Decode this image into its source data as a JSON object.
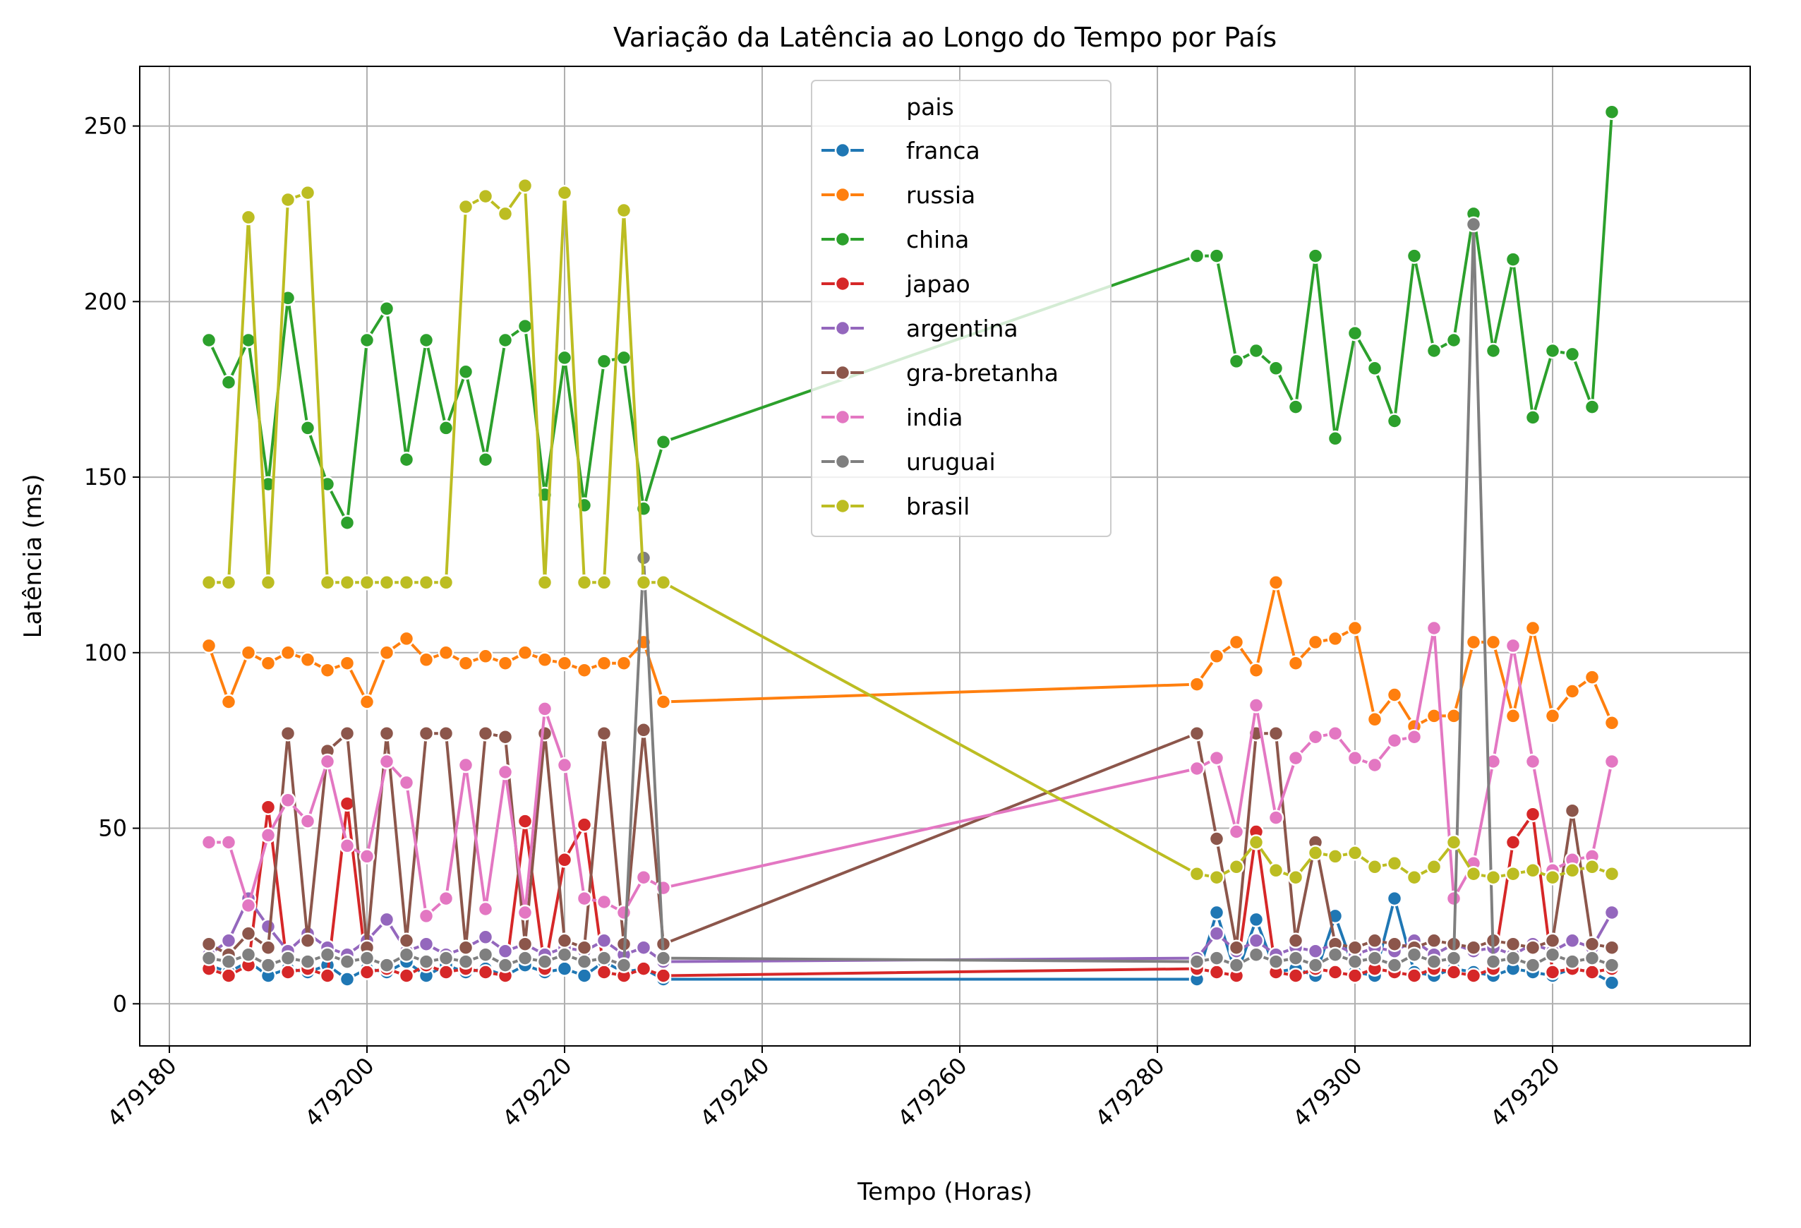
{
  "chart_data": {
    "type": "line",
    "title": "Variação da Latência ao Longo do Tempo por País",
    "xlabel": "Tempo (Horas)",
    "ylabel": "Latência (ms)",
    "xlim": [
      479177,
      479340
    ],
    "ylim": [
      -12,
      267
    ],
    "xticks": [
      479180,
      479200,
      479220,
      479240,
      479260,
      479280,
      479300,
      479320
    ],
    "xtick_labels": [
      "479180",
      "479200",
      "479220",
      "479240",
      "479260",
      "479280",
      "479300",
      "479320"
    ],
    "yticks": [
      0,
      50,
      100,
      150,
      200,
      250
    ],
    "ytick_labels": [
      "0",
      "50",
      "100",
      "150",
      "200",
      "250"
    ],
    "grid": true,
    "legend": {
      "title": "pais",
      "placement": "upper-center"
    },
    "series": [
      {
        "name": "franca",
        "color": "#1f77b4",
        "x": [
          479184,
          479186,
          479188,
          479190,
          479192,
          479194,
          479196,
          479198,
          479200,
          479202,
          479204,
          479206,
          479208,
          479210,
          479212,
          479214,
          479216,
          479218,
          479220,
          479222,
          479224,
          479226,
          479228,
          479230,
          479284,
          479286,
          479288,
          479290,
          479292,
          479294,
          479296,
          479298,
          479300,
          479302,
          479304,
          479306,
          479308,
          479310,
          479312,
          479314,
          479316,
          479318,
          479320,
          479322,
          479324,
          479326
        ],
        "y": [
          11,
          9,
          12,
          8,
          10,
          9,
          11,
          7,
          10,
          9,
          12,
          8,
          11,
          9,
          10,
          8,
          11,
          9,
          10,
          8,
          12,
          9,
          10,
          7,
          7,
          26,
          8,
          24,
          9,
          10,
          8,
          25,
          9,
          8,
          30,
          9,
          8,
          10,
          9,
          8,
          10,
          9,
          8,
          10,
          9,
          6
        ]
      },
      {
        "name": "russia",
        "color": "#ff7f0e",
        "x": [
          479184,
          479186,
          479188,
          479190,
          479192,
          479194,
          479196,
          479198,
          479200,
          479202,
          479204,
          479206,
          479208,
          479210,
          479212,
          479214,
          479216,
          479218,
          479220,
          479222,
          479224,
          479226,
          479228,
          479230,
          479284,
          479286,
          479288,
          479290,
          479292,
          479294,
          479296,
          479298,
          479300,
          479302,
          479304,
          479306,
          479308,
          479310,
          479312,
          479314,
          479316,
          479318,
          479320,
          479322,
          479324,
          479326
        ],
        "y": [
          102,
          86,
          100,
          97,
          100,
          98,
          95,
          97,
          86,
          100,
          104,
          98,
          100,
          97,
          99,
          97,
          100,
          98,
          97,
          95,
          97,
          97,
          103,
          86,
          91,
          99,
          103,
          95,
          120,
          97,
          103,
          104,
          107,
          81,
          88,
          79,
          82,
          82,
          103,
          103,
          82,
          107,
          82,
          89,
          93,
          80
        ]
      },
      {
        "name": "china",
        "color": "#2ca02c",
        "x": [
          479184,
          479186,
          479188,
          479190,
          479192,
          479194,
          479196,
          479198,
          479200,
          479202,
          479204,
          479206,
          479208,
          479210,
          479212,
          479214,
          479216,
          479218,
          479220,
          479222,
          479224,
          479226,
          479228,
          479230,
          479284,
          479286,
          479288,
          479290,
          479292,
          479294,
          479296,
          479298,
          479300,
          479302,
          479304,
          479306,
          479308,
          479310,
          479312,
          479314,
          479316,
          479318,
          479320,
          479322,
          479324,
          479326
        ],
        "y": [
          189,
          177,
          189,
          148,
          201,
          164,
          148,
          137,
          189,
          198,
          155,
          189,
          164,
          180,
          155,
          189,
          193,
          145,
          184,
          142,
          183,
          184,
          141,
          160,
          213,
          213,
          183,
          186,
          181,
          170,
          213,
          161,
          191,
          181,
          166,
          213,
          186,
          189,
          225,
          186,
          212,
          167,
          186,
          185,
          170,
          254
        ]
      },
      {
        "name": "japao",
        "color": "#d62728",
        "x": [
          479184,
          479186,
          479188,
          479190,
          479192,
          479194,
          479196,
          479198,
          479200,
          479202,
          479204,
          479206,
          479208,
          479210,
          479212,
          479214,
          479216,
          479218,
          479220,
          479222,
          479224,
          479226,
          479228,
          479230,
          479284,
          479286,
          479288,
          479290,
          479292,
          479294,
          479296,
          479298,
          479300,
          479302,
          479304,
          479306,
          479308,
          479310,
          479312,
          479314,
          479316,
          479318,
          479320,
          479322,
          479324,
          479326
        ],
        "y": [
          10,
          8,
          11,
          56,
          9,
          10,
          8,
          57,
          9,
          10,
          8,
          11,
          9,
          10,
          9,
          8,
          52,
          10,
          41,
          51,
          9,
          8,
          10,
          8,
          10,
          9,
          8,
          49,
          9,
          8,
          10,
          9,
          8,
          10,
          9,
          8,
          10,
          9,
          8,
          10,
          46,
          54,
          9,
          10,
          9,
          10
        ]
      },
      {
        "name": "argentina",
        "color": "#9467bd",
        "x": [
          479184,
          479186,
          479188,
          479190,
          479192,
          479194,
          479196,
          479198,
          479200,
          479202,
          479204,
          479206,
          479208,
          479210,
          479212,
          479214,
          479216,
          479218,
          479220,
          479222,
          479224,
          479226,
          479228,
          479230,
          479284,
          479286,
          479288,
          479290,
          479292,
          479294,
          479296,
          479298,
          479300,
          479302,
          479304,
          479306,
          479308,
          479310,
          479312,
          479314,
          479316,
          479318,
          479320,
          479322,
          479324,
          479326
        ],
        "y": [
          14,
          18,
          30,
          22,
          15,
          20,
          16,
          14,
          18,
          24,
          15,
          17,
          14,
          16,
          19,
          15,
          17,
          14,
          16,
          15,
          18,
          14,
          16,
          12,
          13,
          20,
          15,
          18,
          14,
          16,
          15,
          17,
          14,
          16,
          15,
          18,
          14,
          17,
          15,
          16,
          14,
          17,
          15,
          18,
          16,
          26
        ]
      },
      {
        "name": "gra-bretanha",
        "color": "#8c564b",
        "x": [
          479184,
          479186,
          479188,
          479190,
          479192,
          479194,
          479196,
          479198,
          479200,
          479202,
          479204,
          479206,
          479208,
          479210,
          479212,
          479214,
          479216,
          479218,
          479220,
          479222,
          479224,
          479226,
          479228,
          479230,
          479284,
          479286,
          479288,
          479290,
          479292,
          479294,
          479296,
          479298,
          479300,
          479302,
          479304,
          479306,
          479308,
          479310,
          479312,
          479314,
          479316,
          479318,
          479320,
          479322,
          479324,
          479326
        ],
        "y": [
          17,
          14,
          20,
          16,
          77,
          18,
          72,
          77,
          16,
          77,
          18,
          77,
          77,
          16,
          77,
          76,
          17,
          77,
          18,
          16,
          77,
          17,
          78,
          17,
          77,
          47,
          16,
          77,
          77,
          18,
          46,
          17,
          16,
          18,
          17,
          16,
          18,
          17,
          16,
          18,
          17,
          16,
          18,
          55,
          17,
          16
        ]
      },
      {
        "name": "india",
        "color": "#e377c2",
        "x": [
          479184,
          479186,
          479188,
          479190,
          479192,
          479194,
          479196,
          479198,
          479200,
          479202,
          479204,
          479206,
          479208,
          479210,
          479212,
          479214,
          479216,
          479218,
          479220,
          479222,
          479224,
          479226,
          479228,
          479230,
          479284,
          479286,
          479288,
          479290,
          479292,
          479294,
          479296,
          479298,
          479300,
          479302,
          479304,
          479306,
          479308,
          479310,
          479312,
          479314,
          479316,
          479318,
          479320,
          479322,
          479324,
          479326
        ],
        "y": [
          46,
          46,
          28,
          48,
          58,
          52,
          69,
          45,
          42,
          69,
          63,
          25,
          30,
          68,
          27,
          66,
          26,
          84,
          68,
          30,
          29,
          26,
          36,
          33,
          67,
          70,
          49,
          85,
          53,
          70,
          76,
          77,
          70,
          68,
          75,
          76,
          107,
          30,
          40,
          69,
          102,
          69,
          38,
          41,
          42,
          69
        ]
      },
      {
        "name": "uruguai",
        "color": "#7f7f7f",
        "x": [
          479184,
          479186,
          479188,
          479190,
          479192,
          479194,
          479196,
          479198,
          479200,
          479202,
          479204,
          479206,
          479208,
          479210,
          479212,
          479214,
          479216,
          479218,
          479220,
          479222,
          479224,
          479226,
          479228,
          479230,
          479284,
          479286,
          479288,
          479290,
          479292,
          479294,
          479296,
          479298,
          479300,
          479302,
          479304,
          479306,
          479308,
          479310,
          479312,
          479314,
          479316,
          479318,
          479320,
          479322,
          479324,
          479326
        ],
        "y": [
          13,
          12,
          14,
          11,
          13,
          12,
          14,
          12,
          13,
          11,
          14,
          12,
          13,
          12,
          14,
          11,
          13,
          12,
          14,
          12,
          13,
          11,
          127,
          13,
          12,
          13,
          11,
          14,
          12,
          13,
          11,
          14,
          12,
          13,
          11,
          14,
          12,
          13,
          222,
          12,
          13,
          11,
          14,
          12,
          13,
          11
        ]
      },
      {
        "name": "brasil",
        "color": "#bcbd22",
        "x": [
          479184,
          479186,
          479188,
          479190,
          479192,
          479194,
          479196,
          479198,
          479200,
          479202,
          479204,
          479206,
          479208,
          479210,
          479212,
          479214,
          479216,
          479218,
          479220,
          479222,
          479224,
          479226,
          479228,
          479230,
          479284,
          479286,
          479288,
          479290,
          479292,
          479294,
          479296,
          479298,
          479300,
          479302,
          479304,
          479306,
          479308,
          479310,
          479312,
          479314,
          479316,
          479318,
          479320,
          479322,
          479324,
          479326
        ],
        "y": [
          120,
          120,
          224,
          120,
          229,
          231,
          120,
          120,
          120,
          120,
          120,
          120,
          120,
          227,
          230,
          225,
          233,
          120,
          231,
          120,
          120,
          226,
          120,
          120,
          37,
          36,
          39,
          46,
          38,
          36,
          43,
          42,
          43,
          39,
          40,
          36,
          39,
          46,
          37,
          36,
          37,
          38,
          36,
          38,
          39,
          37
        ]
      }
    ]
  }
}
